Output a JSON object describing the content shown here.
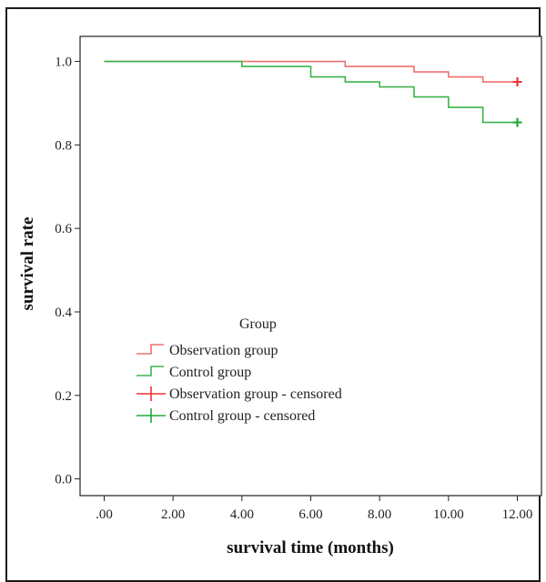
{
  "chart_data": {
    "type": "line",
    "subtype": "kaplan-meier step",
    "title": "",
    "xlabel": "survival time (months)",
    "ylabel": "survival rate",
    "xlim": [
      -0.7,
      12.7
    ],
    "ylim": [
      -0.04,
      1.06
    ],
    "x_ticks": [
      ".00",
      "2.00",
      "4.00",
      "6.00",
      "8.00",
      "10.00",
      "12.00"
    ],
    "x_tick_values": [
      0,
      2,
      4,
      6,
      8,
      10,
      12
    ],
    "y_ticks": [
      "0.0",
      "0.2",
      "0.4",
      "0.6",
      "0.8",
      "1.0"
    ],
    "y_tick_values": [
      0.0,
      0.2,
      0.4,
      0.6,
      0.8,
      1.0
    ],
    "grid": false,
    "legend_title": "Group",
    "legend_position": "inside left, lower half",
    "series": [
      {
        "name": "Observation group",
        "color": "#f07070",
        "x": [
          0,
          7,
          9,
          10,
          11,
          12
        ],
        "y": [
          1.0,
          0.988,
          0.975,
          0.963,
          0.951,
          0.951
        ]
      },
      {
        "name": "Control group",
        "color": "#3cb44b",
        "x": [
          0,
          4,
          6,
          7,
          8,
          9,
          10,
          11,
          12
        ],
        "y": [
          1.0,
          0.988,
          0.963,
          0.951,
          0.939,
          0.915,
          0.89,
          0.854,
          0.854
        ]
      }
    ],
    "censored": [
      {
        "name": "Observation group - censored",
        "color": "#ee3333",
        "x": [
          12
        ],
        "y": [
          0.951
        ]
      },
      {
        "name": "Control group - censored",
        "color": "#22a836",
        "x": [
          12
        ],
        "y": [
          0.854
        ]
      }
    ],
    "legend": [
      {
        "label": "Observation group",
        "kind": "step",
        "color": "#f07070"
      },
      {
        "label": "Control group",
        "kind": "step",
        "color": "#3cb44b"
      },
      {
        "label": "Observation group - censored",
        "kind": "plus",
        "color": "#ee3333"
      },
      {
        "label": "Control group - censored",
        "kind": "plus",
        "color": "#22a836"
      }
    ]
  }
}
